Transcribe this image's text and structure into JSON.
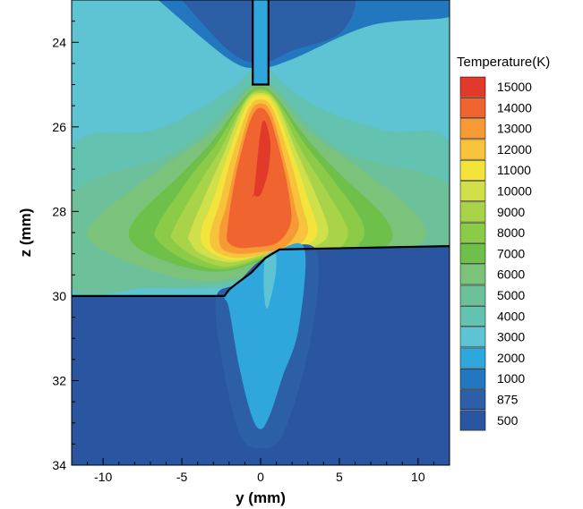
{
  "chart_data": {
    "type": "heatmap",
    "xlabel": "y (mm)",
    "ylabel": "z (mm)",
    "xlim": [
      -12,
      12
    ],
    "ylim": [
      23,
      34
    ],
    "y_axis_inverted": true,
    "x_ticks": [
      -10,
      -5,
      0,
      5,
      10
    ],
    "x_tick_labels": [
      "-10",
      "-5",
      "0",
      "5",
      "10"
    ],
    "y_ticks": [
      24,
      26,
      28,
      30,
      32,
      34
    ],
    "y_tick_labels": [
      "24",
      "26",
      "28",
      "30",
      "32",
      "34"
    ],
    "legend": {
      "title": "Temperature(K)",
      "placement": "right",
      "levels": [
        {
          "label": "15000",
          "value": 15000,
          "color": "#e23a2a"
        },
        {
          "label": "14000",
          "value": 14000,
          "color": "#f06430"
        },
        {
          "label": "13000",
          "value": 13000,
          "color": "#f79a35"
        },
        {
          "label": "12000",
          "value": 12000,
          "color": "#f7c23c"
        },
        {
          "label": "11000",
          "value": 11000,
          "color": "#f3e43c"
        },
        {
          "label": "10000",
          "value": 10000,
          "color": "#cfe04a"
        },
        {
          "label": "9000",
          "value": 9000,
          "color": "#a9d44a"
        },
        {
          "label": "8000",
          "value": 8000,
          "color": "#8ccb48"
        },
        {
          "label": "7000",
          "value": 7000,
          "color": "#6fc04a"
        },
        {
          "label": "6000",
          "value": 6000,
          "color": "#7bc37a"
        },
        {
          "label": "5000",
          "value": 5000,
          "color": "#6cc09a"
        },
        {
          "label": "4000",
          "value": 4000,
          "color": "#63c2b0"
        },
        {
          "label": "3000",
          "value": 3000,
          "color": "#5ec3d2"
        },
        {
          "label": "2000",
          "value": 2000,
          "color": "#2fa6dc"
        },
        {
          "label": "1000",
          "value": 1000,
          "color": "#2277be"
        },
        {
          "label": "875",
          "value": 875,
          "color": "#2c5fa6"
        },
        {
          "label": "500",
          "value": 500,
          "color": "#2a55a0"
        }
      ]
    },
    "electrode_outline": {
      "y": [
        -0.5,
        -0.5,
        0.5,
        0.5
      ],
      "z": [
        23,
        25,
        25,
        23
      ]
    },
    "workpiece_boundary": {
      "y": [
        -12,
        -2.3,
        -2,
        -1.5,
        -0.6,
        0.3,
        1.2,
        3.5,
        12
      ],
      "z": [
        30,
        30,
        29.85,
        29.7,
        29.45,
        29.1,
        28.9,
        28.88,
        28.82
      ]
    },
    "regions": [
      {
        "level": "1000",
        "y": [
          -6.5,
          -2,
          0,
          2,
          7,
          12,
          12,
          -6.5
        ],
        "z": [
          23,
          24.4,
          24.6,
          24.4,
          23.6,
          23.4,
          23,
          23
        ]
      },
      {
        "level": "875",
        "y": [
          -5,
          -2,
          0,
          2,
          5,
          6,
          4,
          0,
          -3,
          -5
        ],
        "z": [
          23,
          24.2,
          24.5,
          24.2,
          23.8,
          23,
          23,
          23,
          23,
          23
        ]
      },
      {
        "level": "4000",
        "y": [
          -12,
          -7,
          -4,
          -1.5,
          0,
          1.5,
          4,
          8,
          12,
          12,
          8,
          4,
          -2.3,
          -8,
          -12
        ],
        "z": [
          26.5,
          26.1,
          25.6,
          25,
          24.5,
          25,
          25.6,
          26.1,
          26.4,
          29.5,
          29.5,
          29.5,
          29.8,
          29.8,
          29.8
        ]
      },
      {
        "level": "5000",
        "y": [
          -12,
          -6,
          -3,
          -1,
          0,
          1,
          3,
          6,
          12,
          12,
          6,
          2,
          -2.3,
          -7,
          -12
        ],
        "z": [
          27.6,
          26.7,
          25.9,
          25.1,
          24.9,
          25.1,
          25.9,
          26.7,
          27.4,
          29.2,
          29.2,
          29.3,
          29.7,
          29.8,
          29.8
        ]
      },
      {
        "level": "6000",
        "y": [
          -10.5,
          -6,
          -3,
          -1,
          0,
          1,
          3,
          6,
          10,
          10,
          6,
          3,
          -2,
          -6,
          -10.5
        ],
        "z": [
          28.2,
          26.9,
          26.1,
          25.2,
          25,
          25.2,
          26.1,
          26.9,
          28.1,
          28.8,
          28.8,
          28.9,
          29.6,
          29.5,
          28.8
        ]
      },
      {
        "level": "7000",
        "y": [
          -8,
          -5,
          -3,
          -1,
          0,
          1,
          3,
          5,
          8,
          8,
          5,
          2,
          -2,
          -5,
          -8
        ],
        "z": [
          28.2,
          27.1,
          26.3,
          25.3,
          25.05,
          25.3,
          26.3,
          27.1,
          28.2,
          28.8,
          28.8,
          28.9,
          29.4,
          29.3,
          28.8
        ]
      },
      {
        "level": "8000",
        "y": [
          -6.5,
          -4.5,
          -2.8,
          -1,
          0,
          1,
          2.8,
          4.5,
          6.5,
          6,
          4,
          1.5,
          -2,
          -4.5,
          -6.5
        ],
        "z": [
          28.3,
          27.2,
          26.4,
          25.35,
          25.1,
          25.35,
          26.4,
          27.2,
          28.3,
          28.85,
          28.85,
          28.95,
          29.35,
          29.2,
          28.7
        ]
      },
      {
        "level": "9000",
        "y": [
          -5.5,
          -4,
          -2.5,
          -1,
          0,
          1,
          2.5,
          4,
          5.5,
          5,
          3.5,
          1.2,
          -2,
          -4,
          -5.5
        ],
        "z": [
          28.4,
          27.4,
          26.5,
          25.4,
          25.15,
          25.4,
          26.5,
          27.4,
          28.4,
          28.85,
          28.88,
          28.95,
          29.3,
          29.1,
          28.7
        ]
      },
      {
        "level": "10000",
        "y": [
          -4.5,
          -3.5,
          -2.3,
          -1,
          0,
          1,
          2.3,
          3.5,
          4.3,
          3.2,
          1,
          -1.8,
          -3.8,
          -4.5
        ],
        "z": [
          28.5,
          27.6,
          26.6,
          25.45,
          25.2,
          25.45,
          26.6,
          27.6,
          28.5,
          28.85,
          28.95,
          29.2,
          29,
          28.7
        ]
      },
      {
        "level": "11000",
        "y": [
          -3.8,
          -3,
          -2.1,
          -0.9,
          0,
          0.9,
          2.1,
          3,
          3.6,
          2.5,
          0.8,
          -1.7,
          -3.4
        ],
        "z": [
          28.5,
          27.7,
          26.7,
          25.5,
          25.25,
          25.5,
          26.7,
          27.7,
          28.5,
          28.88,
          28.95,
          29.15,
          28.9
        ]
      },
      {
        "level": "12000",
        "y": [
          -3.2,
          -2.6,
          -1.9,
          -0.8,
          0,
          0.8,
          1.9,
          2.6,
          3,
          2,
          0.5,
          -1.6,
          -3
        ],
        "z": [
          28.5,
          27.8,
          26.8,
          25.6,
          25.35,
          25.6,
          26.8,
          27.8,
          28.5,
          28.9,
          29,
          29.1,
          28.9
        ]
      },
      {
        "level": "13000",
        "y": [
          -2.6,
          -2.2,
          -1.6,
          -0.7,
          0,
          0.7,
          1.6,
          2.2,
          2.4,
          1.5,
          0.2,
          -1.5,
          -2.5
        ],
        "z": [
          28.4,
          27.9,
          26.9,
          25.7,
          25.45,
          25.7,
          26.9,
          27.9,
          28.4,
          28.85,
          28.95,
          29,
          28.85
        ]
      },
      {
        "level": "14000",
        "y": [
          -2.1,
          -1.8,
          -1.3,
          -0.6,
          0,
          0.6,
          1.3,
          1.8,
          1.9,
          1,
          -0.5,
          -1.5,
          -2.1
        ],
        "z": [
          28.4,
          27.6,
          26.7,
          25.8,
          25.55,
          25.8,
          26.7,
          27.6,
          28.3,
          28.75,
          28.85,
          28.85,
          28.7
        ]
      },
      {
        "level": "15000",
        "y": [
          -0.4,
          0.1,
          0.6,
          0.5,
          0,
          -0.5
        ],
        "z": [
          27.5,
          25.9,
          26.3,
          27,
          27.6,
          27.6
        ]
      },
      {
        "level": "2000",
        "y": [
          -2.3,
          -1.5,
          -0.6,
          0.3,
          1.2,
          2.8,
          2.4,
          1.4,
          0.6,
          0,
          -0.6,
          -1.4,
          -2
        ],
        "z": [
          30,
          29.7,
          29.45,
          29.1,
          28.9,
          28.9,
          30.8,
          31.9,
          32.8,
          33.15,
          32.8,
          31.6,
          30.3
        ]
      },
      {
        "level": "3000",
        "y": [
          0.3,
          0.9,
          1,
          0.8,
          0.4,
          0.2
        ],
        "z": [
          29.1,
          28.95,
          29.3,
          29.8,
          30.3,
          29.8
        ]
      }
    ]
  }
}
